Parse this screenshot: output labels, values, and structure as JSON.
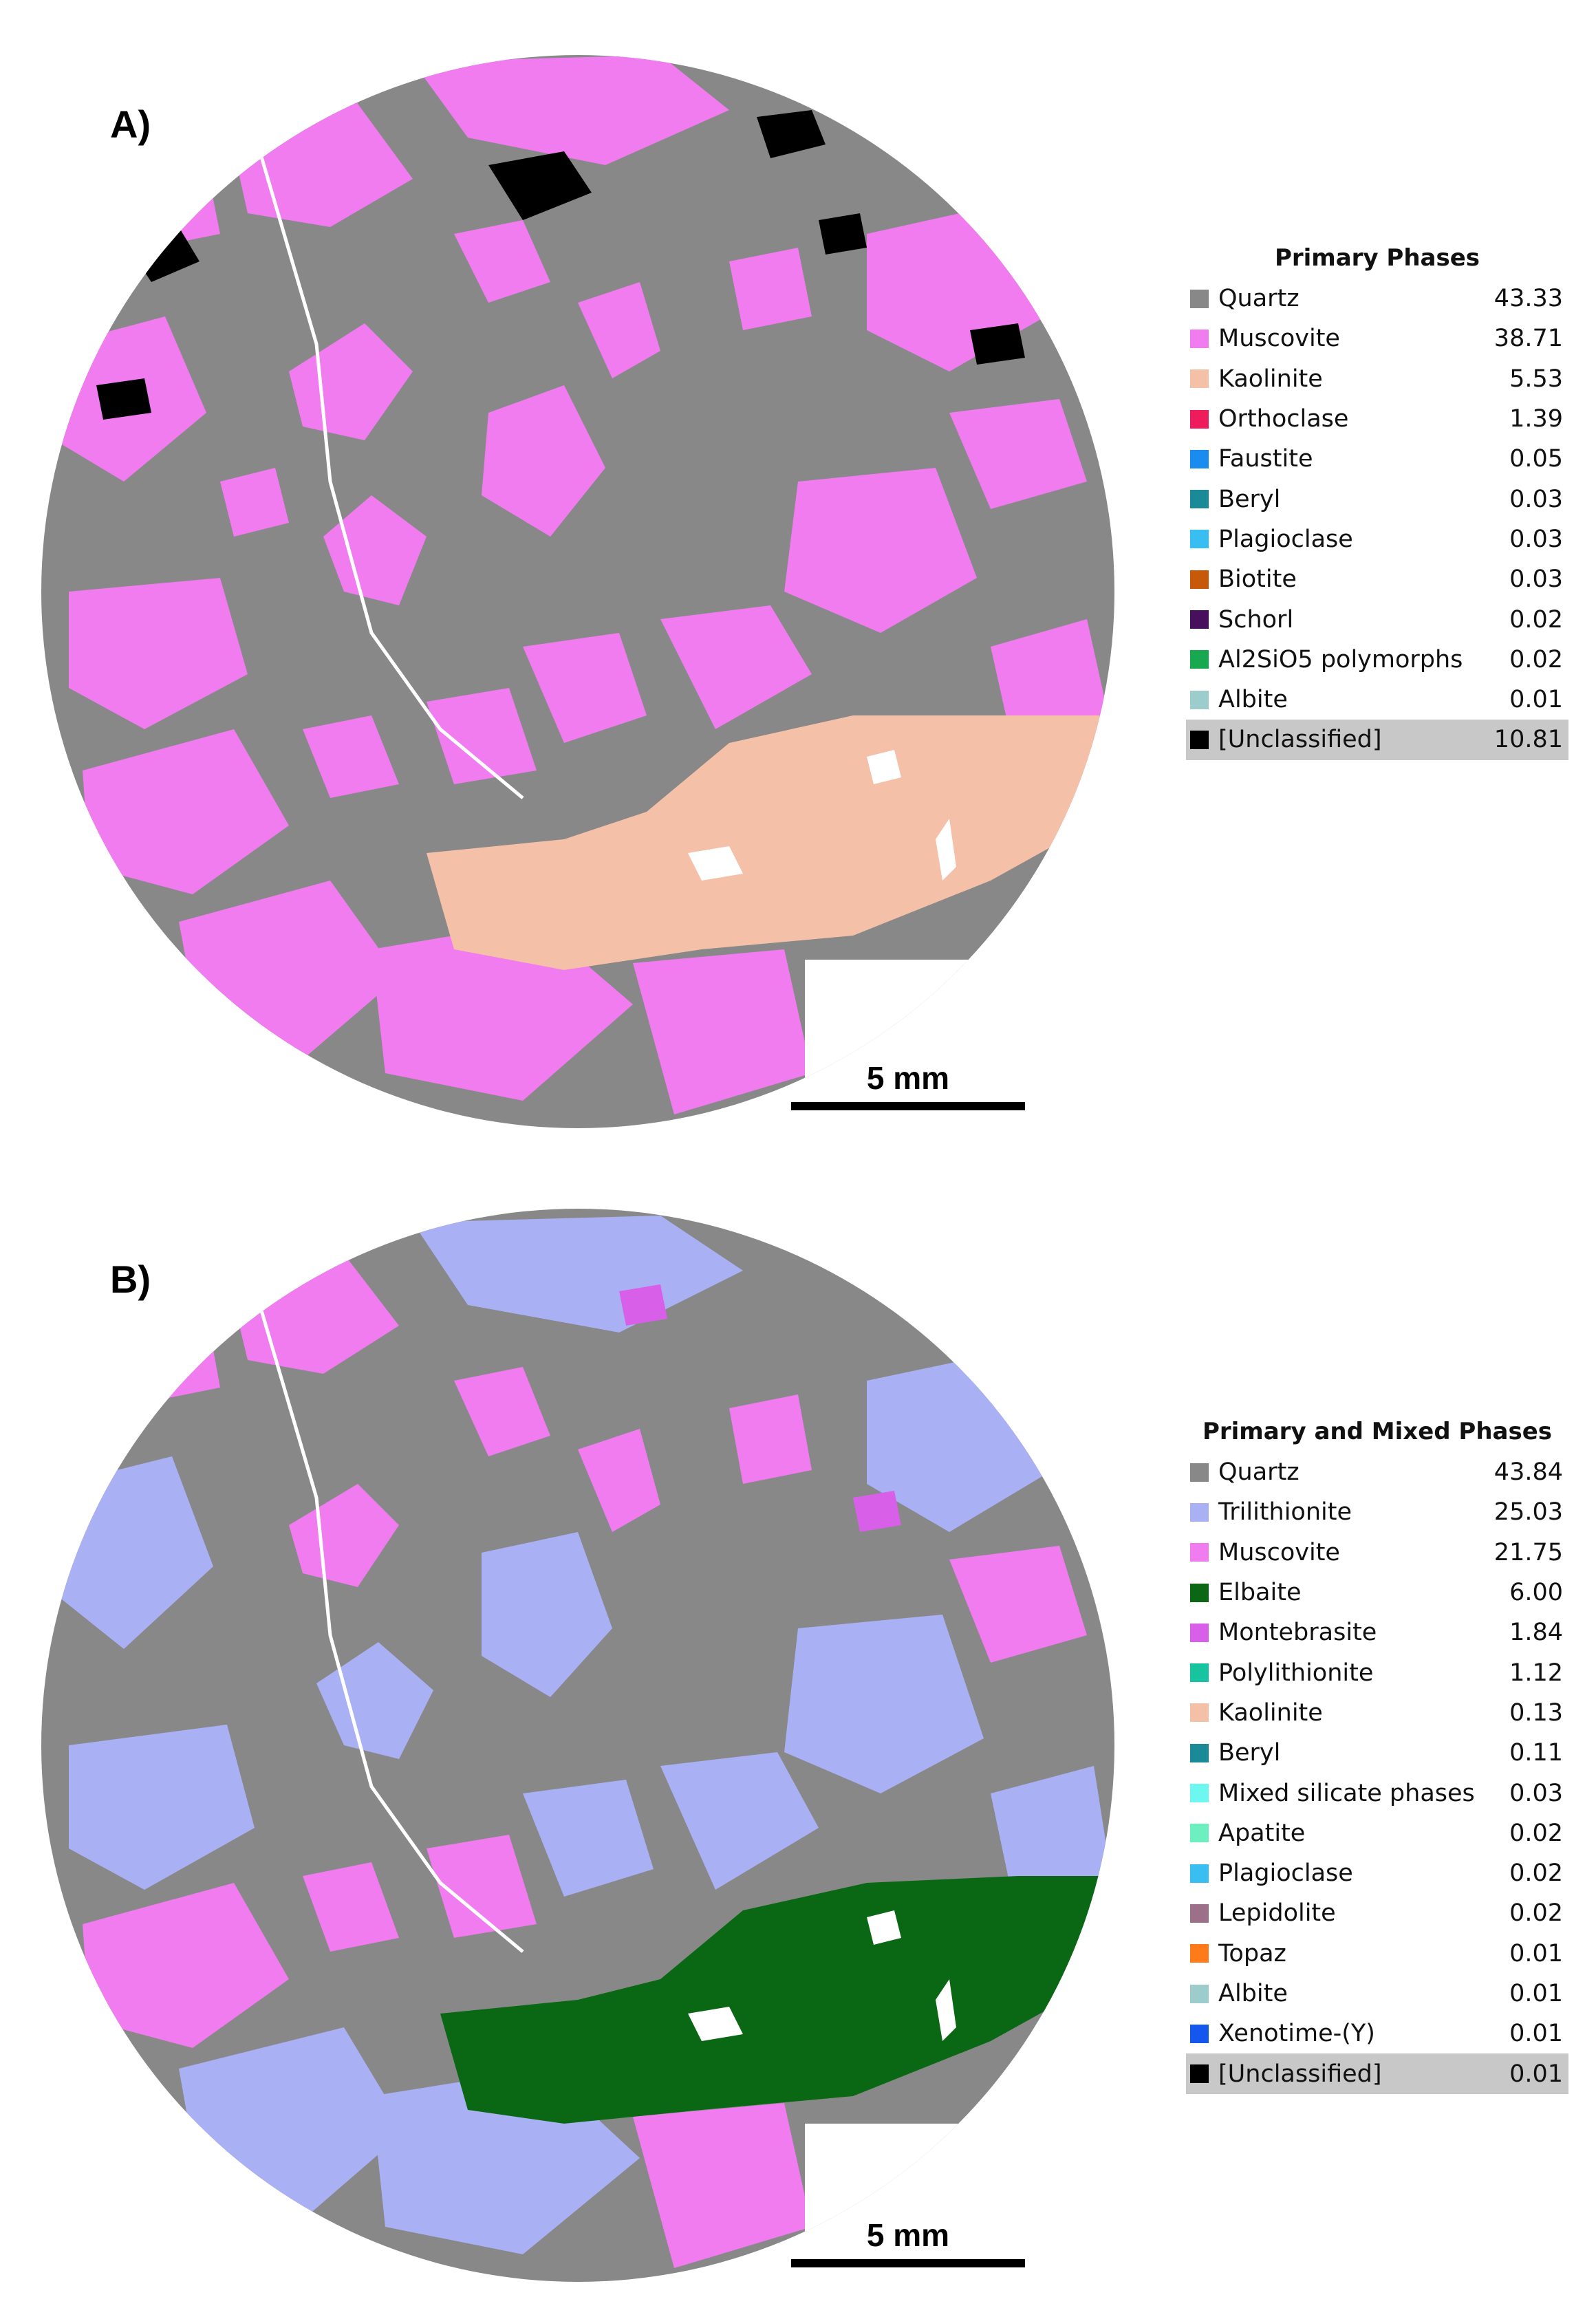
{
  "panels": {
    "a": {
      "label": "A)",
      "legend_title": "Primary Phases",
      "scale_label": "5 mm",
      "legend": [
        {
          "name": "Quartz",
          "value": "43.33",
          "color": "#888888"
        },
        {
          "name": "Muscovite",
          "value": "38.71",
          "color": "#f07cf0"
        },
        {
          "name": "Kaolinite",
          "value": "5.53",
          "color": "#f4c0a8"
        },
        {
          "name": "Orthoclase",
          "value": "1.39",
          "color": "#ee1c5c"
        },
        {
          "name": "Faustite",
          "value": "0.05",
          "color": "#1a8cf0"
        },
        {
          "name": "Beryl",
          "value": "0.03",
          "color": "#1a8a96"
        },
        {
          "name": "Plagioclase",
          "value": "0.03",
          "color": "#38bef0"
        },
        {
          "name": "Biotite",
          "value": "0.03",
          "color": "#c8580a"
        },
        {
          "name": "Schorl",
          "value": "0.02",
          "color": "#46105c"
        },
        {
          "name": "Al2SiO5 polymorphs",
          "value": "0.02",
          "color": "#18a850"
        },
        {
          "name": "Albite",
          "value": "0.01",
          "color": "#9ccccc"
        },
        {
          "name": "[Unclassified]",
          "value": "10.81",
          "color": "#000000",
          "highlight": true
        }
      ]
    },
    "b": {
      "label": "B)",
      "legend_title": "Primary and Mixed Phases",
      "scale_label": "5 mm",
      "legend": [
        {
          "name": "Quartz",
          "value": "43.84",
          "color": "#888888"
        },
        {
          "name": "Trilithionite",
          "value": "25.03",
          "color": "#aab0f4"
        },
        {
          "name": "Muscovite",
          "value": "21.75",
          "color": "#f07cf0"
        },
        {
          "name": "Elbaite",
          "value": "6.00",
          "color": "#0a6814"
        },
        {
          "name": "Montebrasite",
          "value": "1.84",
          "color": "#d860e8"
        },
        {
          "name": "Polylithionite",
          "value": "1.12",
          "color": "#18c4a0"
        },
        {
          "name": "Kaolinite",
          "value": "0.13",
          "color": "#f4c0a8"
        },
        {
          "name": "Beryl",
          "value": "0.11",
          "color": "#1a8a96"
        },
        {
          "name": "Mixed silicate phases",
          "value": "0.03",
          "color": "#6cf8f0"
        },
        {
          "name": "Apatite",
          "value": "0.02",
          "color": "#6cf0c0"
        },
        {
          "name": "Plagioclase",
          "value": "0.02",
          "color": "#38bef0"
        },
        {
          "name": "Lepidolite",
          "value": "0.02",
          "color": "#9c7088"
        },
        {
          "name": "Topaz",
          "value": "0.01",
          "color": "#ff7a18"
        },
        {
          "name": "Albite",
          "value": "0.01",
          "color": "#9ccccc"
        },
        {
          "name": "Xenotime-(Y)",
          "value": "0.01",
          "color": "#1456ee"
        },
        {
          "name": "[Unclassified]",
          "value": "0.01",
          "color": "#000000",
          "highlight": true
        }
      ]
    }
  }
}
